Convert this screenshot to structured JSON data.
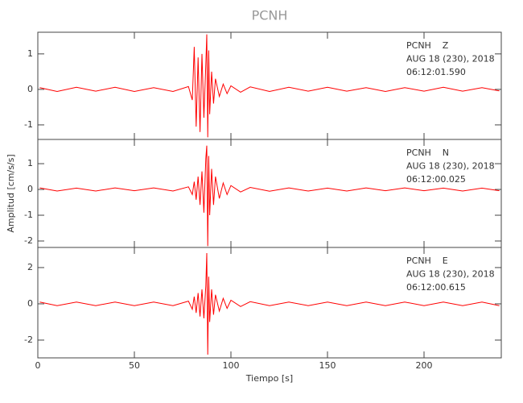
{
  "chart_data": [
    {
      "type": "line",
      "title": "PCNH",
      "annotations": [
        "PCNH    Z",
        "AUG 18 (230), 2018",
        "06:12:01.590"
      ],
      "x": [
        1,
        10,
        20,
        30,
        40,
        50,
        60,
        70,
        78,
        80,
        81,
        82,
        83,
        84,
        85,
        86,
        87,
        87.5,
        88,
        88.5,
        89,
        90,
        91,
        92,
        94,
        96,
        98,
        100,
        105,
        110,
        120,
        130,
        140,
        150,
        160,
        170,
        180,
        190,
        200,
        210,
        220,
        230,
        239
      ],
      "values": [
        0.05,
        -0.06,
        0.06,
        -0.05,
        0.06,
        -0.06,
        0.05,
        -0.06,
        0.08,
        -0.3,
        1.2,
        -1.05,
        0.9,
        -1.2,
        1.0,
        -0.8,
        0.7,
        1.55,
        -1.35,
        1.1,
        -0.7,
        0.5,
        -0.4,
        0.3,
        -0.2,
        0.15,
        -0.12,
        0.1,
        -0.08,
        0.07,
        -0.06,
        0.06,
        -0.05,
        0.06,
        -0.05,
        0.05,
        -0.06,
        0.05,
        -0.05,
        0.06,
        -0.05,
        0.05,
        -0.04
      ],
      "color": "#ff0000",
      "xlim": [
        0,
        240
      ],
      "xticks": [
        0,
        50,
        100,
        150,
        200
      ],
      "ylim": [
        -1.41,
        1.61
      ],
      "yticks": [
        -1,
        0,
        1
      ]
    },
    {
      "type": "line",
      "ylabel": "Amplitud [cm/s/s]",
      "annotations": [
        "PCNH    N",
        "AUG 18 (230), 2018",
        "06:12:00.025"
      ],
      "x": [
        1,
        10,
        20,
        30,
        40,
        50,
        60,
        70,
        78,
        80,
        81,
        82,
        83,
        84,
        85,
        86,
        87,
        87.5,
        88,
        88.5,
        89,
        90,
        91,
        92,
        94,
        96,
        98,
        100,
        105,
        110,
        120,
        130,
        140,
        150,
        160,
        170,
        180,
        190,
        200,
        210,
        220,
        230,
        239
      ],
      "values": [
        0.06,
        -0.06,
        0.05,
        -0.06,
        0.06,
        -0.05,
        0.06,
        -0.06,
        0.1,
        -0.2,
        0.3,
        -0.4,
        0.5,
        -0.6,
        0.7,
        -0.9,
        1.2,
        1.7,
        -2.2,
        1.3,
        -1.0,
        0.8,
        -0.6,
        0.5,
        -0.35,
        0.25,
        -0.2,
        0.15,
        -0.1,
        0.08,
        -0.07,
        0.06,
        -0.06,
        0.05,
        -0.06,
        0.06,
        -0.05,
        0.06,
        -0.05,
        0.05,
        -0.06,
        0.05,
        -0.05
      ],
      "color": "#ff0000",
      "xlim": [
        0,
        240
      ],
      "xticks": [
        0,
        50,
        100,
        150,
        200
      ],
      "ylim": [
        -2.25,
        1.94
      ],
      "yticks": [
        -2,
        -1,
        0,
        1
      ]
    },
    {
      "type": "line",
      "xlabel": "Tiempo [s]",
      "annotations": [
        "PCNH    E",
        "AUG 18 (230), 2018",
        "06:12:00.615"
      ],
      "x": [
        1,
        10,
        20,
        30,
        40,
        50,
        60,
        70,
        78,
        80,
        81,
        82,
        83,
        84,
        85,
        86,
        87,
        87.5,
        88,
        88.5,
        89,
        90,
        91,
        92,
        94,
        96,
        98,
        100,
        105,
        110,
        120,
        130,
        140,
        150,
        160,
        170,
        180,
        190,
        200,
        210,
        220,
        230,
        239
      ],
      "values": [
        0.1,
        -0.1,
        0.1,
        -0.1,
        0.1,
        -0.1,
        0.1,
        -0.1,
        0.15,
        -0.3,
        0.4,
        -0.5,
        0.6,
        -0.7,
        0.8,
        -0.8,
        1.0,
        2.8,
        -2.8,
        1.5,
        -1.0,
        0.8,
        -0.6,
        0.5,
        -0.4,
        0.3,
        -0.25,
        0.2,
        -0.15,
        0.12,
        -0.1,
        0.1,
        -0.1,
        0.1,
        -0.1,
        0.1,
        -0.1,
        0.1,
        -0.1,
        0.1,
        -0.1,
        0.1,
        -0.1
      ],
      "color": "#ff0000",
      "xlim": [
        0,
        240
      ],
      "xticks": [
        0,
        50,
        100,
        150,
        200
      ],
      "ylim": [
        -2.98,
        3.11
      ],
      "yticks": [
        -2,
        0,
        2
      ]
    }
  ]
}
